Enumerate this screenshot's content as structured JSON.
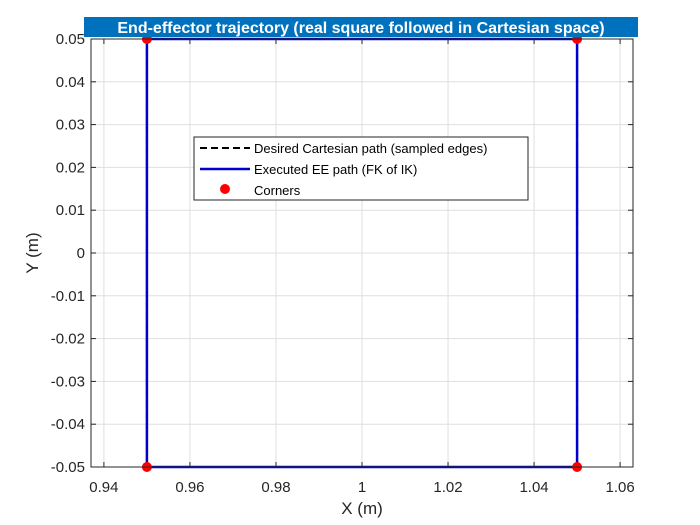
{
  "chart_data": {
    "type": "line",
    "title": "End-effector trajectory (real square followed in Cartesian space)",
    "xlabel": "X (m)",
    "ylabel": "Y (m)",
    "xlim": [
      0.937,
      1.063
    ],
    "ylim": [
      -0.05,
      0.05
    ],
    "xticks": [
      0.94,
      0.96,
      0.98,
      1.0,
      1.02,
      1.04,
      1.06
    ],
    "xtick_labels": [
      "0.94",
      "0.96",
      "0.98",
      "1",
      "1.02",
      "1.04",
      "1.06"
    ],
    "yticks": [
      -0.05,
      -0.04,
      -0.03,
      -0.02,
      -0.01,
      0,
      0.01,
      0.02,
      0.03,
      0.04,
      0.05
    ],
    "ytick_labels": [
      "-0.05",
      "-0.04",
      "-0.03",
      "-0.02",
      "-0.01",
      "0",
      "0.01",
      "0.02",
      "0.03",
      "0.04",
      "0.05"
    ],
    "grid": true,
    "legend_position": "center",
    "series": [
      {
        "name": "Desired Cartesian path (sampled edges)",
        "style": "dashed",
        "color": "#000000",
        "x": [
          0.95,
          1.05,
          1.05,
          0.95,
          0.95
        ],
        "y": [
          -0.05,
          -0.05,
          0.05,
          0.05,
          -0.05
        ]
      },
      {
        "name": "Executed EE path (FK of IK)",
        "style": "solid",
        "color": "#0000cc",
        "x": [
          0.95,
          1.05,
          1.05,
          0.95,
          0.95
        ],
        "y": [
          -0.05,
          -0.05,
          0.05,
          0.05,
          -0.05
        ]
      },
      {
        "name": "Corners",
        "style": "markers",
        "color": "#ff0000",
        "x": [
          0.95,
          1.05,
          1.05,
          0.95
        ],
        "y": [
          -0.05,
          -0.05,
          0.05,
          0.05
        ]
      }
    ]
  },
  "colors": {
    "title_background": "#0072bd",
    "grid": "#dfdfdf",
    "axes": "#262626"
  }
}
